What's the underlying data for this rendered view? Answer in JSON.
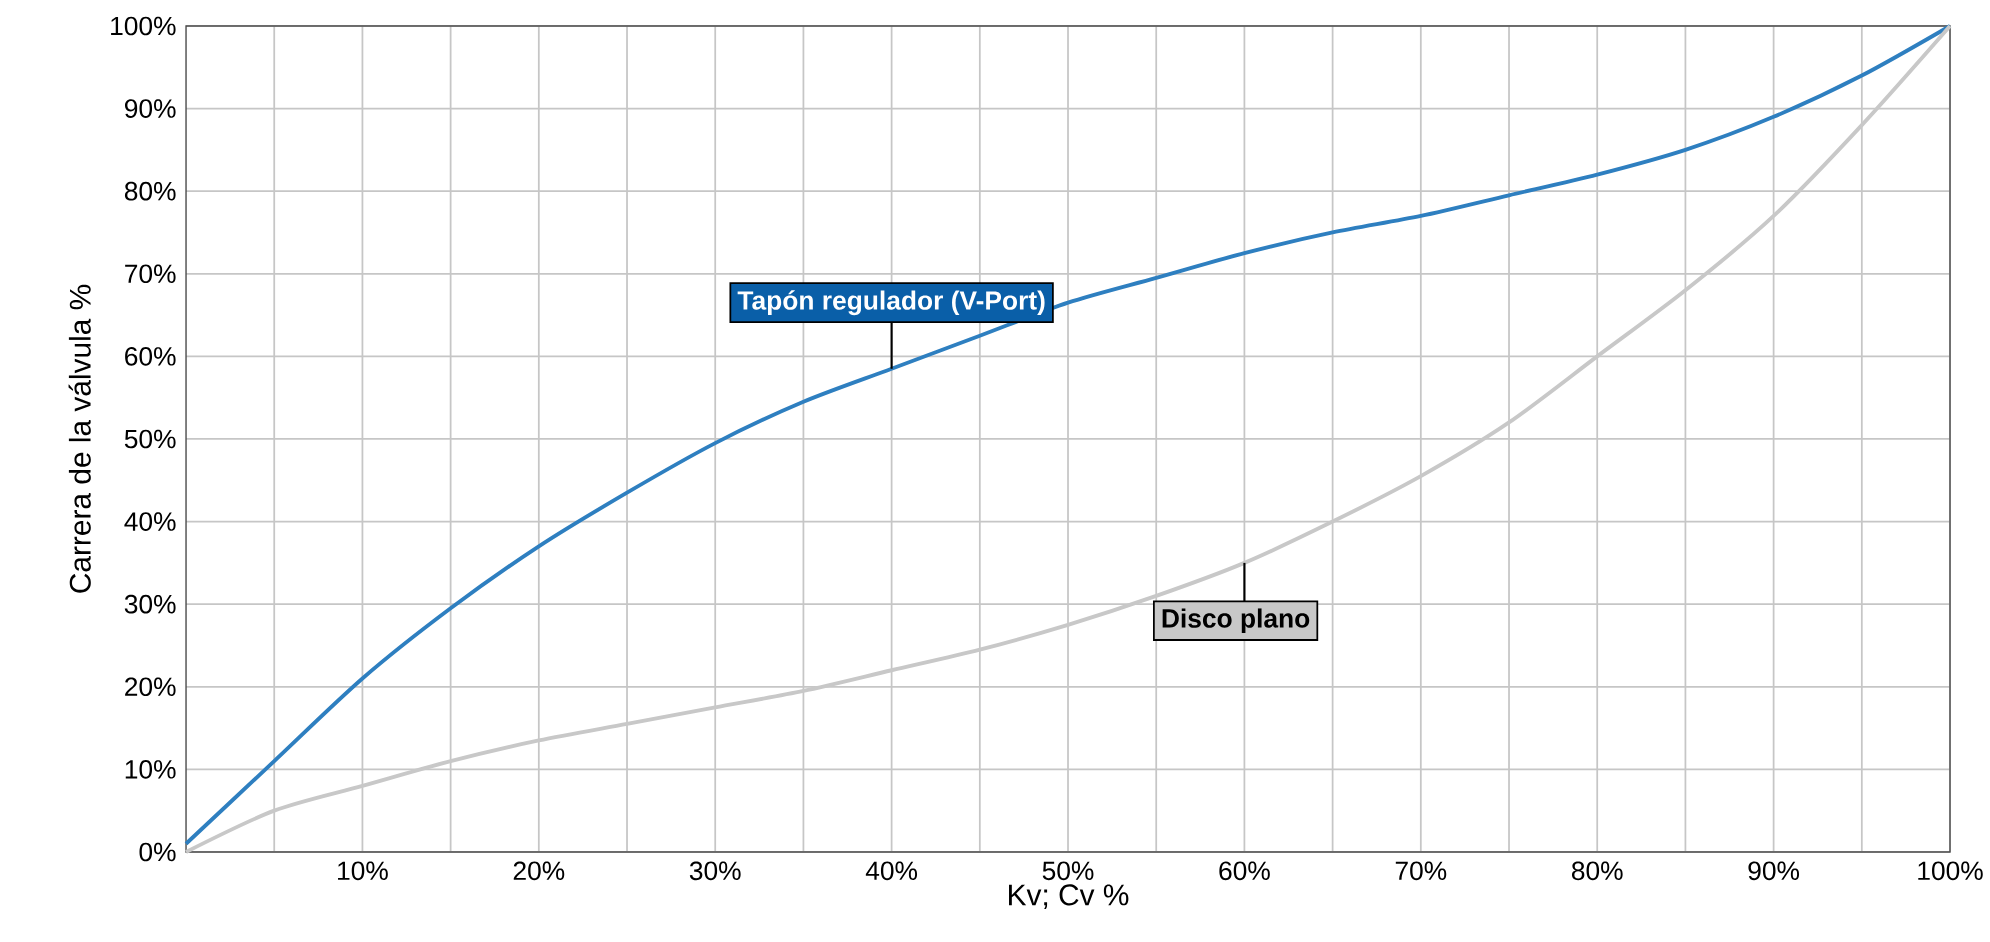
{
  "chart_data": {
    "type": "line",
    "xlabel": "Kv; Cv %",
    "ylabel": "Carrera de la válvula %",
    "xlim": [
      0,
      100
    ],
    "ylim": [
      0,
      100
    ],
    "xticks": [
      {
        "value": 5,
        "label": null
      },
      {
        "value": 10,
        "label": "10%"
      },
      {
        "value": 15,
        "label": null
      },
      {
        "value": 20,
        "label": "20%"
      },
      {
        "value": 25,
        "label": null
      },
      {
        "value": 30,
        "label": "30%"
      },
      {
        "value": 35,
        "label": null
      },
      {
        "value": 40,
        "label": "40%"
      },
      {
        "value": 45,
        "label": null
      },
      {
        "value": 50,
        "label": "50%"
      },
      {
        "value": 55,
        "label": null
      },
      {
        "value": 60,
        "label": "60%"
      },
      {
        "value": 65,
        "label": null
      },
      {
        "value": 70,
        "label": "70%"
      },
      {
        "value": 75,
        "label": null
      },
      {
        "value": 80,
        "label": "80%"
      },
      {
        "value": 85,
        "label": null
      },
      {
        "value": 90,
        "label": "90%"
      },
      {
        "value": 95,
        "label": null
      },
      {
        "value": 100,
        "label": "100%"
      }
    ],
    "yticks": [
      {
        "value": 0,
        "label": "0%"
      },
      {
        "value": 10,
        "label": "10%"
      },
      {
        "value": 20,
        "label": "20%"
      },
      {
        "value": 30,
        "label": "30%"
      },
      {
        "value": 40,
        "label": "40%"
      },
      {
        "value": 50,
        "label": "50%"
      },
      {
        "value": 60,
        "label": "60%"
      },
      {
        "value": 70,
        "label": "70%"
      },
      {
        "value": 80,
        "label": "80%"
      },
      {
        "value": 90,
        "label": "90%"
      },
      {
        "value": 100,
        "label": "100%"
      }
    ],
    "grid": true,
    "series": [
      {
        "name": "Tapón regulador (V-Port)",
        "color": "#2e7fc0",
        "x": [
          0,
          5,
          10,
          15,
          20,
          25,
          30,
          35,
          40,
          45,
          50,
          55,
          60,
          65,
          70,
          75,
          80,
          85,
          90,
          95,
          100
        ],
        "values": [
          1,
          11,
          21,
          29.5,
          37,
          43.5,
          49.5,
          54.5,
          58.5,
          62.5,
          66.5,
          69.5,
          72.5,
          75,
          77,
          79.5,
          82,
          85,
          89,
          94,
          100
        ]
      },
      {
        "name": "Disco plano",
        "color": "#c8c8c8",
        "x": [
          0,
          5,
          10,
          15,
          20,
          25,
          30,
          35,
          40,
          45,
          50,
          55,
          60,
          65,
          70,
          75,
          80,
          85,
          90,
          95,
          100
        ],
        "values": [
          0,
          5,
          8,
          11,
          13.5,
          15.5,
          17.5,
          19.5,
          22,
          24.5,
          27.5,
          31,
          35,
          40,
          45.5,
          52,
          60,
          68,
          77,
          88,
          100
        ]
      }
    ]
  }
}
